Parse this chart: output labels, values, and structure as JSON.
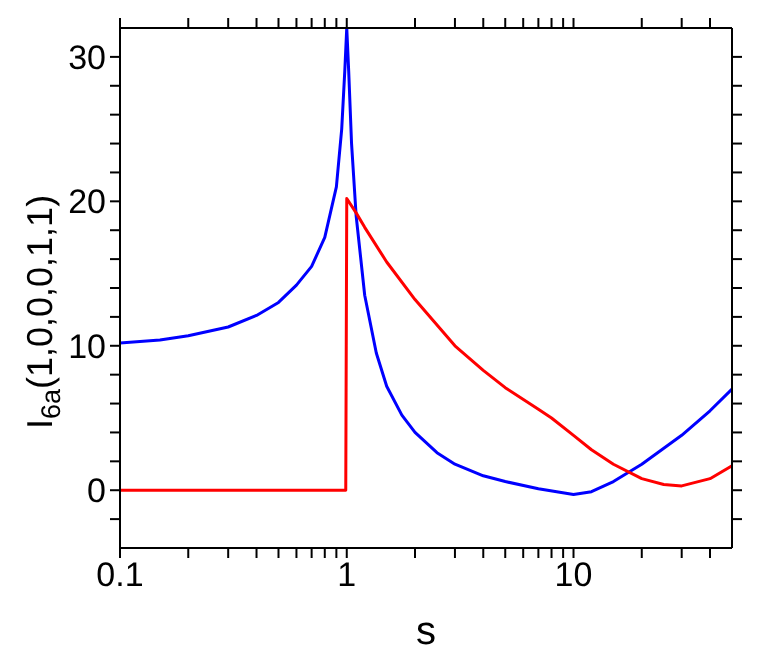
{
  "chart_data": {
    "type": "line",
    "xlabel": "s",
    "ylabel": "I$_{6a}$(1,0,0,0,1,1)",
    "log": "x",
    "marker": "none",
    "line_style": "solid",
    "xlim": [
      0.1,
      50
    ],
    "ylim": [
      -4,
      32
    ],
    "xticks": [
      0.1,
      {
        "value": 0.2,
        "label": null
      },
      {
        "value": 0.3,
        "label": null
      },
      {
        "value": 0.4,
        "label": null
      },
      {
        "value": 0.5,
        "label": null
      },
      {
        "value": 0.6,
        "label": null
      },
      {
        "value": 0.7,
        "label": null
      },
      {
        "value": 0.8,
        "label": null
      },
      {
        "value": 0.9,
        "label": null
      },
      1,
      {
        "value": 2,
        "label": null
      },
      {
        "value": 3,
        "label": null
      },
      {
        "value": 4,
        "label": null
      },
      {
        "value": 5,
        "label": null
      },
      {
        "value": 6,
        "label": null
      },
      {
        "value": 7,
        "label": null
      },
      {
        "value": 8,
        "label": null
      },
      {
        "value": 9,
        "label": null
      },
      10,
      {
        "value": 20,
        "label": null
      },
      {
        "value": 30,
        "label": null
      },
      {
        "value": 40,
        "label": null
      }
    ],
    "yticks": [
      {
        "value": -2,
        "label": null
      },
      0,
      {
        "value": 2,
        "label": null
      },
      {
        "value": 4,
        "label": null
      },
      {
        "value": 6,
        "label": null
      },
      {
        "value": 8,
        "label": null
      },
      10,
      {
        "value": 12,
        "label": null
      },
      {
        "value": 14,
        "label": null
      },
      {
        "value": 16,
        "label": null
      },
      {
        "value": 18,
        "label": null
      },
      20,
      {
        "value": 22,
        "label": null
      },
      {
        "value": 24,
        "label": null
      },
      {
        "value": 26,
        "label": null
      },
      {
        "value": 28,
        "label": null
      },
      30
    ],
    "series": [
      {
        "color": "#0000ff",
        "x": [
          0.1,
          0.15,
          0.2,
          0.3,
          0.4,
          0.5,
          0.6,
          0.7,
          0.8,
          0.9,
          0.95,
          0.98,
          1.0,
          1.02,
          1.05,
          1.1,
          1.2,
          1.35,
          1.5,
          1.75,
          2,
          2.5,
          3,
          4,
          5,
          7,
          10,
          12,
          15,
          20,
          30,
          40,
          50
        ],
        "values": [
          10.2,
          10.4,
          10.7,
          11.3,
          12.1,
          13,
          14.2,
          15.5,
          17.5,
          21,
          25,
          29,
          32,
          29,
          24,
          19,
          13.5,
          9.5,
          7.2,
          5.2,
          4,
          2.6,
          1.8,
          1,
          0.6,
          0.1,
          -0.3,
          -0.1,
          0.6,
          1.8,
          3.8,
          5.5,
          7
        ]
      },
      {
        "color": "#ff0000",
        "x": [
          0.1,
          0.5,
          0.99,
          1.0,
          1.1,
          1.2,
          1.5,
          2,
          3,
          4,
          5,
          7,
          8,
          10,
          12,
          15,
          20,
          25,
          30,
          40,
          50
        ],
        "values": [
          0,
          0,
          0,
          20.2,
          19.2,
          18.2,
          15.8,
          13.2,
          10,
          8.3,
          7.1,
          5.6,
          5,
          3.8,
          2.8,
          1.8,
          0.8,
          0.4,
          0.3,
          0.8,
          1.7
        ]
      }
    ]
  }
}
